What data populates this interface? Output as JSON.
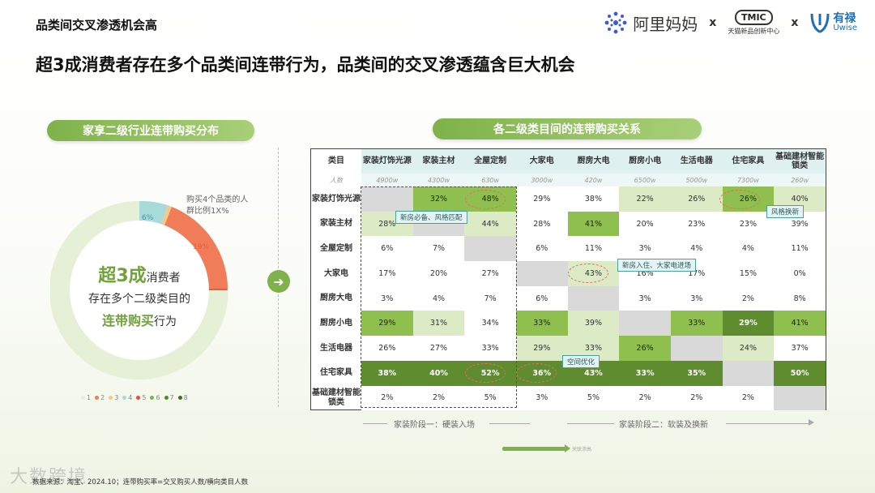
{
  "page_title": "品类间交叉渗透机会高",
  "logos": {
    "alimama": "阿里妈妈",
    "x1": "x",
    "tmic": "TMIC",
    "tmic_sub": "天猫新品创新中心",
    "x2": "x",
    "uwise_cn": "有禄",
    "uwise_en": "Uwise"
  },
  "headline": "超3成消费者存在多个品类间连带行为，品类间的交叉渗透蕴含巨大机会",
  "left_section": {
    "title": "家享二级行业连带购买分布",
    "callout": "购买4个品类的人群比例1X%",
    "center_big": "超3成",
    "center_line1": "消费者",
    "center_line2": "存在多个二级类目的",
    "center_hl": "连带购买",
    "center_line3": "行为"
  },
  "right_section": {
    "title": "各二级类目间的连带购买关系",
    "corner_label": "类目",
    "count_label": "人数",
    "stage1": "家装阶段一：硬装入场",
    "stage2": "家装阶段二：软装及换新",
    "flow_text": "关联渗高"
  },
  "annotations": {
    "tag1": "新房必备、风格匹配",
    "tag2": "风格换新",
    "tag3": "新房入住、大家电进场",
    "tag4": "空间优化"
  },
  "footer": "数据来源：淘宝、2024.10；连带购买率=交叉购买人数/横向类目人数",
  "watermark": "大数跨境",
  "colors": {
    "accent": "#7fb24a",
    "dark_green": "#5e8c2e",
    "mid_green": "#8fbf4f",
    "light_green": "#dcebc6",
    "highlight_red": "#e07060"
  },
  "chart_data": [
    {
      "type": "pie",
      "title": "家享二级行业连带购买分布",
      "legend": [
        "1",
        "2",
        "3",
        "4",
        "5",
        "6",
        "7",
        "8"
      ],
      "slice_labels": [
        {
          "category": "4",
          "label": "6%"
        },
        {
          "category": "2",
          "label": "19%"
        }
      ]
    },
    {
      "type": "heatmap",
      "title": "各二级类目间的连带购买关系",
      "columns": [
        "家装灯饰光源",
        "家装主材",
        "全屋定制",
        "大家电",
        "厨房大电",
        "厨房小电",
        "生活电器",
        "住宅家具",
        "基础建材智能锁类"
      ],
      "column_counts": [
        "4900w",
        "4300w",
        "630w",
        "3000w",
        "420w",
        "6500w",
        "5000w",
        "7300w",
        "260w"
      ],
      "rows": [
        "家装灯饰光源",
        "家装主材",
        "全屋定制",
        "大家电",
        "厨房大电",
        "厨房小电",
        "生活电器",
        "住宅家具",
        "基础建材智能锁类"
      ],
      "values": [
        [
          "",
          "32%",
          "48%",
          "29%",
          "38%",
          "22%",
          "26%",
          "26%",
          "40%"
        ],
        [
          "28%",
          "",
          "44%",
          "28%",
          "41%",
          "20%",
          "23%",
          "23%",
          "39%"
        ],
        [
          "6%",
          "7%",
          "",
          "6%",
          "11%",
          "3%",
          "4%",
          "4%",
          "11%"
        ],
        [
          "17%",
          "20%",
          "27%",
          "",
          "43%",
          "16%",
          "17%",
          "15%",
          "0%"
        ],
        [
          "3%",
          "4%",
          "7%",
          "6%",
          "",
          "3%",
          "3%",
          "2%",
          "8%"
        ],
        [
          "29%",
          "31%",
          "34%",
          "33%",
          "39%",
          "",
          "33%",
          "29%",
          "41%"
        ],
        [
          "26%",
          "27%",
          "33%",
          "29%",
          "33%",
          "26%",
          "",
          "24%",
          "37%"
        ],
        [
          "38%",
          "40%",
          "52%",
          "36%",
          "43%",
          "33%",
          "35%",
          "",
          "50%"
        ],
        [
          "2%",
          "2%",
          "5%",
          "3%",
          "5%",
          "2%",
          "2%",
          "2%",
          ""
        ]
      ],
      "shading": [
        [
          0,
          2,
          2,
          0,
          0,
          1,
          1,
          2,
          1
        ],
        [
          1,
          0,
          1,
          0,
          2,
          0,
          0,
          0,
          0
        ],
        [
          0,
          0,
          0,
          0,
          0,
          0,
          0,
          0,
          0
        ],
        [
          0,
          0,
          0,
          0,
          1,
          0,
          0,
          0,
          0
        ],
        [
          0,
          0,
          0,
          0,
          0,
          0,
          0,
          0,
          0
        ],
        [
          2,
          1,
          0,
          2,
          1,
          0,
          2,
          3,
          2
        ],
        [
          0,
          0,
          0,
          1,
          1,
          2,
          0,
          1,
          0
        ],
        [
          3,
          3,
          3,
          3,
          3,
          3,
          3,
          0,
          3
        ],
        [
          0,
          0,
          0,
          0,
          0,
          0,
          0,
          0,
          0
        ]
      ],
      "circled": [
        [
          0,
          2
        ],
        [
          0,
          7
        ],
        [
          3,
          4
        ],
        [
          7,
          2
        ],
        [
          7,
          3
        ]
      ]
    }
  ]
}
